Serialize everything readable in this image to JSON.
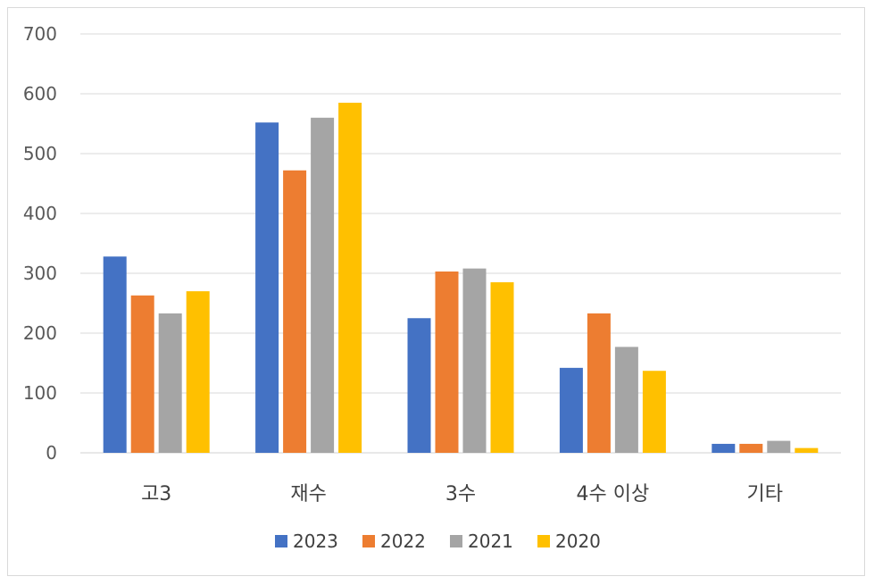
{
  "chart_data": {
    "type": "bar",
    "title": "",
    "xlabel": "",
    "ylabel": "",
    "ylim": [
      0,
      700
    ],
    "yticks": [
      0,
      100,
      200,
      300,
      400,
      500,
      600,
      700
    ],
    "grid": true,
    "legend_position": "bottom",
    "categories": [
      "고3",
      "재수",
      "3수",
      "4수 이상",
      "기타"
    ],
    "series": [
      {
        "name": "2023",
        "color": "#4472C4",
        "values": [
          328,
          552,
          225,
          142,
          15
        ]
      },
      {
        "name": "2022",
        "color": "#ED7D31",
        "values": [
          263,
          472,
          303,
          233,
          15
        ]
      },
      {
        "name": "2021",
        "color": "#A5A5A5",
        "values": [
          233,
          560,
          308,
          177,
          20
        ]
      },
      {
        "name": "2020",
        "color": "#FFC000",
        "values": [
          270,
          585,
          285,
          137,
          8
        ]
      }
    ]
  }
}
